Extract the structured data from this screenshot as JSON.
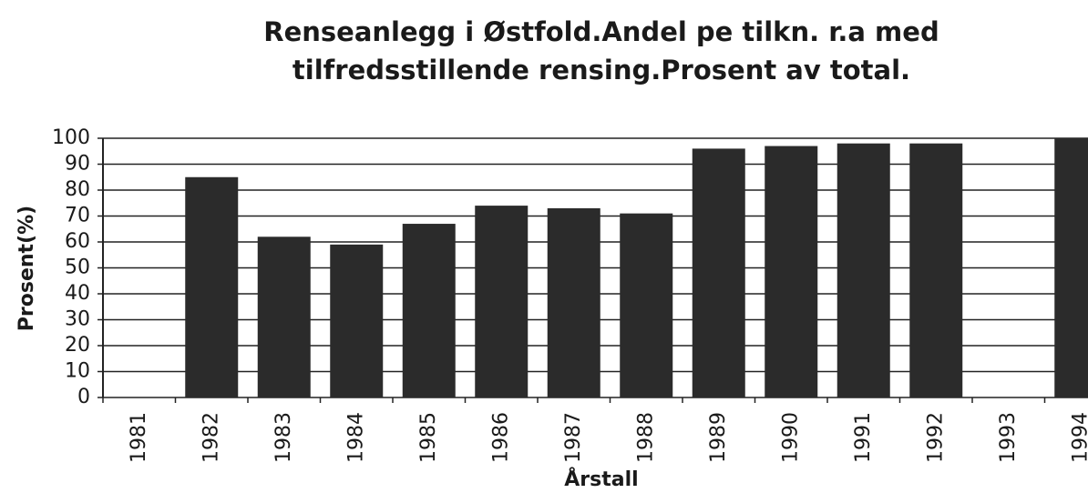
{
  "chart_data": {
    "type": "bar",
    "title": "Renseanlegg i Østfold.Andel pe tilkn. r.a med tilfredsstillende rensing.Prosent av total.",
    "x_label": "Årstall",
    "y_label": "Prosent(%)",
    "categories": [
      "1981",
      "1982",
      "1983",
      "1984",
      "1985",
      "1986",
      "1987",
      "1988",
      "1989",
      "1990",
      "1991",
      "1992",
      "1993",
      "1994"
    ],
    "values": [
      null,
      85,
      62,
      59,
      67,
      74,
      73,
      71,
      96,
      97,
      98,
      98,
      null,
      100
    ],
    "color": "#2b2b2b",
    "ylim": [
      0,
      100
    ],
    "yticks": [
      0,
      10,
      20,
      30,
      40,
      50,
      60,
      70,
      80,
      90,
      100
    ],
    "grid": true
  }
}
